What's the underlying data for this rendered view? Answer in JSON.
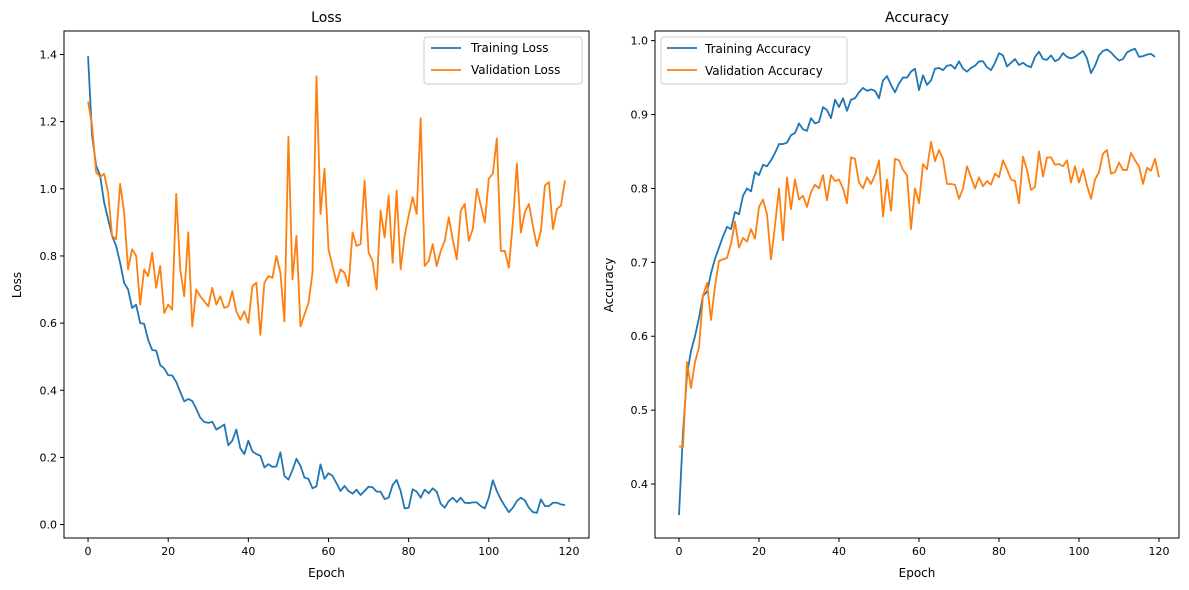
{
  "chart_data": [
    {
      "type": "line",
      "title": "Loss",
      "xlabel": "Epoch",
      "ylabel": "Loss",
      "xlim": [
        -6,
        125
      ],
      "ylim": [
        -0.04,
        1.47
      ],
      "xticks": [
        0,
        20,
        40,
        60,
        80,
        100,
        120
      ],
      "xtick_labels": [
        "0",
        "20",
        "40",
        "60",
        "80",
        "100",
        "120"
      ],
      "yticks": [
        0.0,
        0.2,
        0.4,
        0.6,
        0.8,
        1.0,
        1.2,
        1.4
      ],
      "ytick_labels": [
        "0.0",
        "0.2",
        "0.4",
        "0.6",
        "0.8",
        "1.0",
        "1.2",
        "1.4"
      ],
      "legend_position": "upper right",
      "grid": false,
      "series": [
        {
          "name": "Training Loss",
          "color": "#1f77b4",
          "values": [
            1.395,
            1.16,
            1.07,
            1.04,
            0.96,
            0.91,
            0.86,
            0.83,
            0.78,
            0.72,
            0.7,
            0.645,
            0.655,
            0.6,
            0.598,
            0.55,
            0.52,
            0.518,
            0.475,
            0.465,
            0.445,
            0.444,
            0.425,
            0.395,
            0.367,
            0.374,
            0.368,
            0.345,
            0.318,
            0.306,
            0.303,
            0.306,
            0.283,
            0.29,
            0.298,
            0.236,
            0.25,
            0.283,
            0.227,
            0.21,
            0.25,
            0.218,
            0.21,
            0.205,
            0.17,
            0.18,
            0.172,
            0.173,
            0.215,
            0.145,
            0.134,
            0.162,
            0.196,
            0.175,
            0.14,
            0.136,
            0.108,
            0.114,
            0.179,
            0.136,
            0.153,
            0.145,
            0.123,
            0.1,
            0.115,
            0.1,
            0.092,
            0.104,
            0.088,
            0.1,
            0.113,
            0.111,
            0.098,
            0.098,
            0.076,
            0.08,
            0.118,
            0.133,
            0.1,
            0.048,
            0.05,
            0.105,
            0.098,
            0.08,
            0.104,
            0.093,
            0.108,
            0.098,
            0.062,
            0.05,
            0.07,
            0.08,
            0.067,
            0.08,
            0.065,
            0.064,
            0.066,
            0.066,
            0.055,
            0.048,
            0.08,
            0.132,
            0.1,
            0.075,
            0.055,
            0.037,
            0.05,
            0.07,
            0.08,
            0.072,
            0.05,
            0.037,
            0.035,
            0.075,
            0.055,
            0.055,
            0.065,
            0.065,
            0.06,
            0.058
          ]
        },
        {
          "name": "Validation Loss",
          "color": "#ff7f0e",
          "values": [
            1.26,
            1.19,
            1.05,
            1.035,
            1.045,
            0.99,
            0.86,
            0.85,
            1.015,
            0.93,
            0.76,
            0.82,
            0.8,
            0.655,
            0.76,
            0.74,
            0.81,
            0.705,
            0.77,
            0.63,
            0.655,
            0.64,
            0.985,
            0.76,
            0.68,
            0.87,
            0.59,
            0.7,
            0.68,
            0.665,
            0.65,
            0.705,
            0.655,
            0.68,
            0.645,
            0.65,
            0.695,
            0.635,
            0.61,
            0.635,
            0.6,
            0.71,
            0.72,
            0.565,
            0.72,
            0.74,
            0.735,
            0.8,
            0.75,
            0.605,
            1.155,
            0.73,
            0.86,
            0.59,
            0.625,
            0.66,
            0.75,
            1.335,
            0.925,
            1.06,
            0.82,
            0.77,
            0.72,
            0.76,
            0.75,
            0.71,
            0.87,
            0.83,
            0.835,
            1.025,
            0.81,
            0.785,
            0.7,
            0.935,
            0.855,
            0.98,
            0.78,
            0.995,
            0.76,
            0.86,
            0.92,
            0.975,
            0.925,
            1.21,
            0.77,
            0.785,
            0.835,
            0.77,
            0.815,
            0.845,
            0.915,
            0.85,
            0.79,
            0.935,
            0.955,
            0.845,
            0.88,
            1.0,
            0.95,
            0.9,
            1.03,
            1.045,
            1.15,
            0.815,
            0.815,
            0.765,
            0.9,
            1.075,
            0.87,
            0.93,
            0.955,
            0.89,
            0.83,
            0.875,
            1.01,
            1.02,
            0.88,
            0.94,
            0.95,
            1.025
          ]
        }
      ]
    },
    {
      "type": "line",
      "title": "Accuracy",
      "xlabel": "Epoch",
      "ylabel": "Accuracy",
      "xlim": [
        -6,
        125
      ],
      "ylim": [
        0.327,
        1.013
      ],
      "xticks": [
        0,
        20,
        40,
        60,
        80,
        100,
        120
      ],
      "xtick_labels": [
        "0",
        "20",
        "40",
        "60",
        "80",
        "100",
        "120"
      ],
      "yticks": [
        0.4,
        0.5,
        0.6,
        0.7,
        0.8,
        0.9,
        1.0
      ],
      "ytick_labels": [
        "0.4",
        "0.5",
        "0.6",
        "0.7",
        "0.8",
        "0.9",
        "1.0"
      ],
      "legend_position": "upper left",
      "grid": false,
      "series": [
        {
          "name": "Training Accuracy",
          "color": "#1f77b4",
          "values": [
            0.358,
            0.47,
            0.548,
            0.58,
            0.6,
            0.625,
            0.655,
            0.66,
            0.685,
            0.705,
            0.72,
            0.735,
            0.748,
            0.745,
            0.768,
            0.765,
            0.79,
            0.8,
            0.796,
            0.822,
            0.818,
            0.832,
            0.83,
            0.838,
            0.848,
            0.86,
            0.86,
            0.862,
            0.872,
            0.875,
            0.888,
            0.88,
            0.878,
            0.895,
            0.888,
            0.89,
            0.91,
            0.906,
            0.895,
            0.92,
            0.91,
            0.922,
            0.905,
            0.92,
            0.922,
            0.93,
            0.936,
            0.932,
            0.934,
            0.932,
            0.922,
            0.946,
            0.952,
            0.94,
            0.93,
            0.942,
            0.95,
            0.95,
            0.958,
            0.962,
            0.933,
            0.953,
            0.94,
            0.946,
            0.962,
            0.963,
            0.96,
            0.966,
            0.967,
            0.962,
            0.972,
            0.962,
            0.958,
            0.963,
            0.966,
            0.972,
            0.972,
            0.964,
            0.96,
            0.97,
            0.983,
            0.98,
            0.965,
            0.97,
            0.975,
            0.967,
            0.97,
            0.966,
            0.964,
            0.978,
            0.985,
            0.975,
            0.974,
            0.98,
            0.972,
            0.975,
            0.983,
            0.978,
            0.976,
            0.978,
            0.982,
            0.986,
            0.976,
            0.956,
            0.966,
            0.98,
            0.986,
            0.988,
            0.984,
            0.978,
            0.973,
            0.975,
            0.984,
            0.987,
            0.989,
            0.978,
            0.979,
            0.981,
            0.982,
            0.978
          ]
        },
        {
          "name": "Validation Accuracy",
          "color": "#ff7f0e",
          "values": [
            0.451,
            0.45,
            0.565,
            0.53,
            0.565,
            0.585,
            0.655,
            0.672,
            0.622,
            0.668,
            0.702,
            0.704,
            0.706,
            0.725,
            0.755,
            0.72,
            0.733,
            0.728,
            0.745,
            0.732,
            0.775,
            0.785,
            0.765,
            0.704,
            0.75,
            0.8,
            0.73,
            0.815,
            0.772,
            0.812,
            0.785,
            0.79,
            0.775,
            0.795,
            0.805,
            0.8,
            0.818,
            0.784,
            0.818,
            0.81,
            0.812,
            0.8,
            0.78,
            0.842,
            0.84,
            0.808,
            0.8,
            0.815,
            0.806,
            0.818,
            0.838,
            0.762,
            0.812,
            0.77,
            0.84,
            0.838,
            0.825,
            0.818,
            0.745,
            0.8,
            0.78,
            0.833,
            0.826,
            0.863,
            0.837,
            0.852,
            0.84,
            0.806,
            0.806,
            0.805,
            0.786,
            0.8,
            0.83,
            0.815,
            0.8,
            0.815,
            0.803,
            0.81,
            0.805,
            0.82,
            0.815,
            0.838,
            0.826,
            0.812,
            0.81,
            0.78,
            0.843,
            0.825,
            0.798,
            0.802,
            0.85,
            0.816,
            0.842,
            0.842,
            0.832,
            0.833,
            0.83,
            0.838,
            0.808,
            0.83,
            0.808,
            0.826,
            0.804,
            0.786,
            0.812,
            0.822,
            0.847,
            0.852,
            0.82,
            0.822,
            0.835,
            0.825,
            0.825,
            0.848,
            0.838,
            0.83,
            0.806,
            0.828,
            0.824,
            0.84,
            0.815
          ]
        }
      ]
    }
  ]
}
